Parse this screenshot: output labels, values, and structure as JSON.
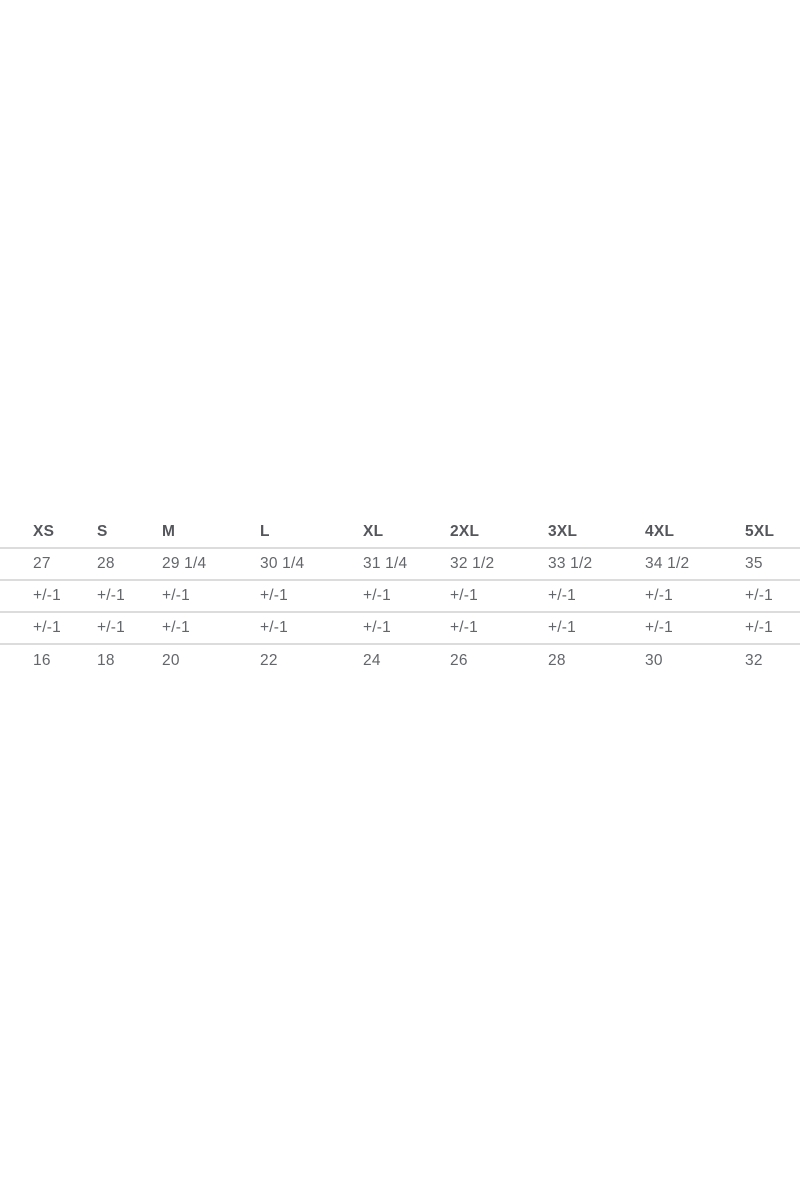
{
  "size_chart": {
    "columns": [
      "XS",
      "S",
      "M",
      "L",
      "XL",
      "2XL",
      "3XL",
      "4XL",
      "5XL"
    ],
    "rows": [
      [
        "27",
        "28",
        "29 1/4",
        "30 1/4",
        "31 1/4",
        "32 1/2",
        "33 1/2",
        "34 1/2",
        "35"
      ],
      [
        "+/-1",
        "+/-1",
        "+/-1",
        "+/-1",
        "+/-1",
        "+/-1",
        "+/-1",
        "+/-1",
        "+/-1"
      ],
      [
        "+/-1",
        "+/-1",
        "+/-1",
        "+/-1",
        "+/-1",
        "+/-1",
        "+/-1",
        "+/-1",
        "+/-1"
      ],
      [
        "16",
        "18",
        "20",
        "22",
        "24",
        "26",
        "28",
        "30",
        "32"
      ]
    ],
    "colors": {
      "header_text": "#54565b",
      "body_text": "#63666a",
      "divider": "#dcdcdc",
      "background": "#ffffff"
    }
  }
}
